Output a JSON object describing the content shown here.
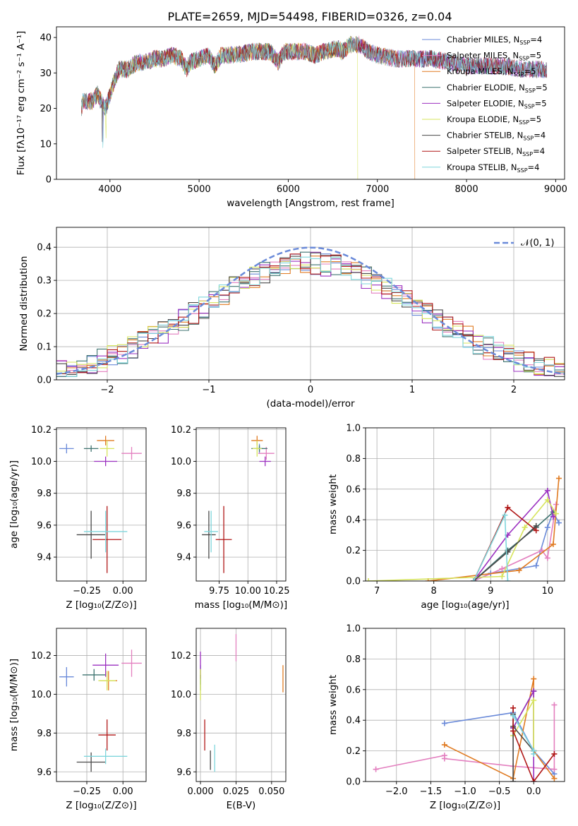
{
  "title": "PLATE=2659, MJD=54498, FIBERID=0326, z=0.04",
  "series_styles": [
    {
      "name": "Chabrier MILES",
      "nssp": "4",
      "color": "#6a8ad9"
    },
    {
      "name": "Salpeter MILES",
      "nssp": "5",
      "color": "#e37fbf"
    },
    {
      "name": "Kroupa MILES",
      "nssp": "5",
      "color": "#e07b22"
    },
    {
      "name": "Chabrier ELODIE",
      "nssp": "5",
      "color": "#3f7370"
    },
    {
      "name": "Salpeter ELODIE",
      "nssp": "5",
      "color": "#9b30c0"
    },
    {
      "name": "Kroupa ELODIE",
      "nssp": "5",
      "color": "#d6e45c"
    },
    {
      "name": "Chabrier STELIB",
      "nssp": "4",
      "color": "#4a4a4a"
    },
    {
      "name": "Salpeter STELIB",
      "nssp": "4",
      "color": "#b01717"
    },
    {
      "name": "Kroupa STELIB",
      "nssp": "4",
      "color": "#7fd6dc"
    }
  ],
  "chart_data": [
    {
      "id": "spectrum",
      "type": "line",
      "title": "PLATE=2659, MJD=54498, FIBERID=0326, z=0.04",
      "xlabel": "wavelength [Angstrom, rest frame]",
      "ylabel": "Flux [fλ10⁻¹⁷ erg cm⁻² s⁻¹ A⁻¹]",
      "xlim": [
        3400,
        9100
      ],
      "ylim": [
        0,
        43
      ],
      "xticks": [
        4000,
        5000,
        6000,
        7000,
        8000,
        9000
      ],
      "yticks": [
        0,
        10,
        20,
        30,
        40
      ],
      "legend_position": "top-right",
      "continuum": [
        [
          3680,
          20
        ],
        [
          3700,
          22
        ],
        [
          3800,
          22
        ],
        [
          3860,
          24
        ],
        [
          3900,
          22
        ],
        [
          3950,
          20
        ],
        [
          4000,
          24
        ],
        [
          4050,
          28
        ],
        [
          4100,
          31
        ],
        [
          4200,
          31
        ],
        [
          4300,
          33
        ],
        [
          4400,
          33
        ],
        [
          4500,
          34
        ],
        [
          4600,
          34
        ],
        [
          4700,
          35
        ],
        [
          4800,
          34
        ],
        [
          4861,
          31
        ],
        [
          4900,
          33
        ],
        [
          5000,
          34
        ],
        [
          5100,
          35
        ],
        [
          5176,
          32
        ],
        [
          5250,
          35
        ],
        [
          5400,
          35
        ],
        [
          5600,
          36
        ],
        [
          5800,
          36
        ],
        [
          5890,
          33
        ],
        [
          5950,
          36
        ],
        [
          6000,
          36
        ],
        [
          6200,
          36
        ],
        [
          6300,
          35
        ],
        [
          6400,
          36
        ],
        [
          6563,
          37
        ],
        [
          6600,
          36
        ],
        [
          6700,
          38
        ],
        [
          6800,
          38
        ],
        [
          6900,
          36
        ],
        [
          7000,
          35
        ],
        [
          7200,
          34
        ],
        [
          7400,
          34
        ],
        [
          7600,
          34
        ],
        [
          7800,
          33
        ],
        [
          8000,
          32
        ],
        [
          8200,
          32
        ],
        [
          8400,
          32
        ],
        [
          8600,
          31
        ],
        [
          8800,
          31
        ],
        [
          8900,
          31
        ]
      ],
      "dropouts": {
        "Kroupa MILES": 7420,
        "Kroupa ELODIE": 6780
      }
    },
    {
      "id": "residuals",
      "type": "histogram",
      "xlabel": "(data-model)/error",
      "ylabel": "Normed distribution",
      "xlim": [
        -2.5,
        2.5
      ],
      "ylim": [
        0,
        0.46
      ],
      "xticks": [
        -2,
        -1,
        0,
        1,
        2
      ],
      "yticks": [
        0.0,
        0.1,
        0.2,
        0.3,
        0.4
      ],
      "reference_curve": {
        "label": "𝒩(0, 1)",
        "mu": 0,
        "sigma": 1,
        "style": "dashed"
      },
      "bin_width": 0.1,
      "legend_position": "top-right"
    },
    {
      "id": "age-vs-Z",
      "type": "errorbar",
      "xlabel": "Z [log₁₀(Z/Z⊙)]",
      "ylabel": "age  [log₁₀(age/yr)]",
      "xlim": [
        -0.46,
        0.16
      ],
      "ylim": [
        9.25,
        10.21
      ],
      "xticks": [
        -0.25,
        0.0
      ],
      "yticks": [
        9.4,
        9.6,
        9.8,
        10.0,
        10.2
      ],
      "points": [
        {
          "series": "Chabrier MILES",
          "x": -0.39,
          "y": 10.08,
          "xerr": 0.05,
          "yerr": 0.03
        },
        {
          "series": "Salpeter MILES",
          "x": 0.06,
          "y": 10.05,
          "xerr": 0.07,
          "yerr": 0.04
        },
        {
          "series": "Kroupa MILES",
          "x": -0.12,
          "y": 10.13,
          "xerr": 0.06,
          "yerr": 0.03
        },
        {
          "series": "Chabrier ELODIE",
          "x": -0.22,
          "y": 10.08,
          "xerr": 0.05,
          "yerr": 0.02
        },
        {
          "series": "Salpeter ELODIE",
          "x": -0.12,
          "y": 10.0,
          "xerr": 0.08,
          "yerr": 0.03
        },
        {
          "series": "Kroupa ELODIE",
          "x": -0.11,
          "y": 10.08,
          "xerr": 0.05,
          "yerr": 0.05
        },
        {
          "series": "Chabrier STELIB",
          "x": -0.22,
          "y": 9.54,
          "xerr": 0.1,
          "yerr": 0.15
        },
        {
          "series": "Salpeter STELIB",
          "x": -0.11,
          "y": 9.51,
          "xerr": 0.1,
          "yerr": 0.21
        },
        {
          "series": "Kroupa STELIB",
          "x": -0.12,
          "y": 9.56,
          "xerr": 0.15,
          "yerr": 0.13
        }
      ]
    },
    {
      "id": "age-vs-mass",
      "type": "errorbar",
      "xlabel": "mass [log₁₀(M/M⊙)]",
      "xlim": [
        9.55,
        10.33
      ],
      "ylim": [
        9.25,
        10.21
      ],
      "xticks": [
        9.75,
        10.0,
        10.25
      ],
      "yticks": [
        9.4,
        9.6,
        9.8,
        10.0,
        10.2
      ],
      "points": [
        {
          "series": "Chabrier MILES",
          "x": 10.1,
          "y": 10.08,
          "xerr": 0.03,
          "yerr": 0.03
        },
        {
          "series": "Salpeter MILES",
          "x": 10.16,
          "y": 10.05,
          "xerr": 0.07,
          "yerr": 0.04
        },
        {
          "series": "Kroupa MILES",
          "x": 10.08,
          "y": 10.13,
          "xerr": 0.05,
          "yerr": 0.03
        },
        {
          "series": "Chabrier ELODIE",
          "x": 10.1,
          "y": 10.08,
          "xerr": 0.07,
          "yerr": 0.02
        },
        {
          "series": "Salpeter ELODIE",
          "x": 10.15,
          "y": 10.0,
          "xerr": 0.05,
          "yerr": 0.03
        },
        {
          "series": "Kroupa ELODIE",
          "x": 10.08,
          "y": 10.08,
          "xerr": 0.04,
          "yerr": 0.05
        },
        {
          "series": "Chabrier STELIB",
          "x": 9.66,
          "y": 9.54,
          "xerr": 0.06,
          "yerr": 0.15
        },
        {
          "series": "Salpeter STELIB",
          "x": 9.79,
          "y": 9.51,
          "xerr": 0.07,
          "yerr": 0.21
        },
        {
          "series": "Kroupa STELIB",
          "x": 9.68,
          "y": 9.56,
          "xerr": 0.06,
          "yerr": 0.13
        }
      ]
    },
    {
      "id": "mass-weight-vs-age",
      "type": "line",
      "xlabel": "age  [log₁₀(age/yr)]",
      "ylabel": "mass weight",
      "xlim": [
        6.8,
        10.3
      ],
      "ylim": [
        0,
        1
      ],
      "xticks": [
        7,
        8,
        9,
        10
      ],
      "yticks": [
        0.0,
        0.2,
        0.4,
        0.6,
        0.8,
        1.0
      ],
      "series": [
        {
          "name": "Chabrier MILES",
          "points": [
            [
              8.7,
              0.0
            ],
            [
              9.0,
              0.05
            ],
            [
              9.8,
              0.1
            ],
            [
              10.0,
              0.35
            ],
            [
              10.1,
              0.45
            ],
            [
              10.2,
              0.38
            ]
          ]
        },
        {
          "name": "Salpeter MILES",
          "points": [
            [
              8.7,
              0.0
            ],
            [
              9.2,
              0.08
            ],
            [
              9.9,
              0.2
            ],
            [
              10.0,
              0.15
            ],
            [
              10.15,
              0.5
            ]
          ]
        },
        {
          "name": "Kroupa MILES",
          "points": [
            [
              7.9,
              0.0
            ],
            [
              9.5,
              0.07
            ],
            [
              10.1,
              0.24
            ],
            [
              10.2,
              0.67
            ]
          ]
        },
        {
          "name": "Chabrier ELODIE",
          "points": [
            [
              8.7,
              0.0
            ],
            [
              9.3,
              0.2
            ],
            [
              9.8,
              0.35
            ],
            [
              10.1,
              0.45
            ]
          ]
        },
        {
          "name": "Salpeter ELODIE",
          "points": [
            [
              8.7,
              0.0
            ],
            [
              9.3,
              0.3
            ],
            [
              10.0,
              0.59
            ],
            [
              10.1,
              0.42
            ]
          ]
        },
        {
          "name": "Kroupa ELODIE",
          "points": [
            [
              6.85,
              0.0
            ],
            [
              9.2,
              0.03
            ],
            [
              9.6,
              0.35
            ],
            [
              10.0,
              0.53
            ],
            [
              10.15,
              0.44
            ]
          ]
        },
        {
          "name": "Chabrier STELIB",
          "points": [
            [
              8.7,
              0.0
            ],
            [
              9.3,
              0.19
            ],
            [
              9.8,
              0.36
            ]
          ]
        },
        {
          "name": "Salpeter STELIB",
          "points": [
            [
              8.7,
              0.0
            ],
            [
              9.3,
              0.48
            ],
            [
              9.8,
              0.33
            ]
          ]
        },
        {
          "name": "Kroupa STELIB",
          "points": [
            [
              8.7,
              0.0
            ],
            [
              9.25,
              0.43
            ],
            [
              9.3,
              0.0
            ]
          ]
        }
      ]
    },
    {
      "id": "mass-vs-Z",
      "type": "errorbar",
      "xlabel": "Z [log₁₀(Z/Z⊙)]",
      "ylabel": "mass [log₁₀(M/M⊙)]",
      "xlim": [
        -0.46,
        0.16
      ],
      "ylim": [
        9.55,
        10.34
      ],
      "xticks": [
        -0.25,
        0.0
      ],
      "yticks": [
        9.6,
        9.8,
        10.0,
        10.2
      ],
      "points": [
        {
          "series": "Chabrier MILES",
          "x": -0.39,
          "y": 10.09,
          "xerr": 0.05,
          "yerr": 0.05
        },
        {
          "series": "Salpeter MILES",
          "x": 0.06,
          "y": 10.16,
          "xerr": 0.07,
          "yerr": 0.07
        },
        {
          "series": "Kroupa MILES",
          "x": -0.1,
          "y": 10.07,
          "xerr": 0.06,
          "yerr": 0.05
        },
        {
          "series": "Chabrier ELODIE",
          "x": -0.2,
          "y": 10.1,
          "xerr": 0.08,
          "yerr": 0.03
        },
        {
          "series": "Salpeter ELODIE",
          "x": -0.12,
          "y": 10.15,
          "xerr": 0.09,
          "yerr": 0.06
        },
        {
          "series": "Kroupa ELODIE",
          "x": -0.11,
          "y": 10.07,
          "xerr": 0.06,
          "yerr": 0.05
        },
        {
          "series": "Chabrier STELIB",
          "x": -0.22,
          "y": 9.65,
          "xerr": 0.1,
          "yerr": 0.05
        },
        {
          "series": "Salpeter STELIB",
          "x": -0.11,
          "y": 9.79,
          "xerr": 0.06,
          "yerr": 0.08
        },
        {
          "series": "Kroupa STELIB",
          "x": -0.12,
          "y": 9.68,
          "xerr": 0.15,
          "yerr": 0.04
        }
      ]
    },
    {
      "id": "mass-vs-ebv",
      "type": "errorbar",
      "xlabel": "E(B-V)",
      "xlim": [
        -0.003,
        0.06
      ],
      "ylim": [
        9.55,
        10.34
      ],
      "xticks": [
        0.0,
        0.025,
        0.05
      ],
      "yticks": [
        9.6,
        9.8,
        10.0,
        10.2
      ],
      "points": [
        {
          "series": "Chabrier MILES",
          "x": 0.0,
          "y": 10.1,
          "xerr": 0,
          "yerr": 0.05
        },
        {
          "series": "Salpeter MILES",
          "x": 0.025,
          "y": 10.24,
          "xerr": 0,
          "yerr": 0.07
        },
        {
          "series": "Kroupa MILES",
          "x": 0.058,
          "y": 10.08,
          "xerr": 0,
          "yerr": 0.07
        },
        {
          "series": "Chabrier ELODIE",
          "x": 0.0,
          "y": 10.06,
          "xerr": 0,
          "yerr": 0.04
        },
        {
          "series": "Salpeter ELODIE",
          "x": 0.0,
          "y": 10.15,
          "xerr": 0,
          "yerr": 0.07
        },
        {
          "series": "Kroupa ELODIE",
          "x": 0.0,
          "y": 10.05,
          "xerr": 0,
          "yerr": 0.08
        },
        {
          "series": "Chabrier STELIB",
          "x": 0.007,
          "y": 9.66,
          "xerr": 0,
          "yerr": 0.05
        },
        {
          "series": "Salpeter STELIB",
          "x": 0.003,
          "y": 9.79,
          "xerr": 0,
          "yerr": 0.08
        },
        {
          "series": "Kroupa STELIB",
          "x": 0.01,
          "y": 9.67,
          "xerr": 0,
          "yerr": 0.07
        }
      ]
    },
    {
      "id": "mass-weight-vs-Z",
      "type": "line",
      "xlabel": "Z [log₁₀(Z/Z⊙)]",
      "ylabel": "mass weight",
      "xlim": [
        -2.45,
        0.45
      ],
      "ylim": [
        0,
        1
      ],
      "xticks": [
        -2.0,
        -1.5,
        -1.0,
        -0.5,
        0.0
      ],
      "yticks": [
        0.0,
        0.2,
        0.4,
        0.6,
        0.8,
        1.0
      ],
      "series": [
        {
          "name": "Chabrier MILES",
          "points": [
            [
              -1.3,
              0.38
            ],
            [
              -0.3,
              0.45
            ],
            [
              0.0,
              0.2
            ],
            [
              0.3,
              0.05
            ]
          ]
        },
        {
          "name": "Salpeter MILES",
          "points": [
            [
              -2.3,
              0.08
            ],
            [
              -1.3,
              0.17
            ],
            [
              -1.3,
              0.15
            ],
            [
              -0.3,
              0.1
            ],
            [
              0.3,
              0.08
            ],
            [
              0.3,
              0.5
            ]
          ]
        },
        {
          "name": "Kroupa MILES",
          "points": [
            [
              -1.3,
              0.24
            ],
            [
              -0.3,
              0.02
            ],
            [
              0.0,
              0.67
            ],
            [
              0.0,
              0.2
            ],
            [
              0.3,
              0.02
            ]
          ]
        },
        {
          "name": "Chabrier ELODIE",
          "points": [
            [
              -0.3,
              0.35
            ],
            [
              0.0,
              0.59
            ],
            [
              0.0,
              0.2
            ]
          ]
        },
        {
          "name": "Salpeter ELODIE",
          "points": [
            [
              -0.3,
              0.35
            ],
            [
              0.0,
              0.59
            ],
            [
              0.0,
              0.0
            ]
          ]
        },
        {
          "name": "Kroupa ELODIE",
          "points": [
            [
              -0.3,
              0.3
            ],
            [
              0.0,
              0.53
            ],
            [
              0.0,
              0.2
            ]
          ]
        },
        {
          "name": "Chabrier STELIB",
          "points": [
            [
              -0.3,
              0.44
            ],
            [
              -0.3,
              0.0
            ],
            [
              -0.3,
              0.36
            ],
            [
              0.0,
              0.2
            ]
          ]
        },
        {
          "name": "Salpeter STELIB",
          "points": [
            [
              -0.3,
              0.48
            ],
            [
              -0.3,
              0.33
            ],
            [
              0.0,
              0.0
            ],
            [
              0.3,
              0.18
            ]
          ]
        },
        {
          "name": "Kroupa STELIB",
          "points": [
            [
              -0.3,
              0.43
            ],
            [
              0.0,
              0.2
            ],
            [
              0.0,
              0.18
            ]
          ]
        }
      ]
    }
  ]
}
